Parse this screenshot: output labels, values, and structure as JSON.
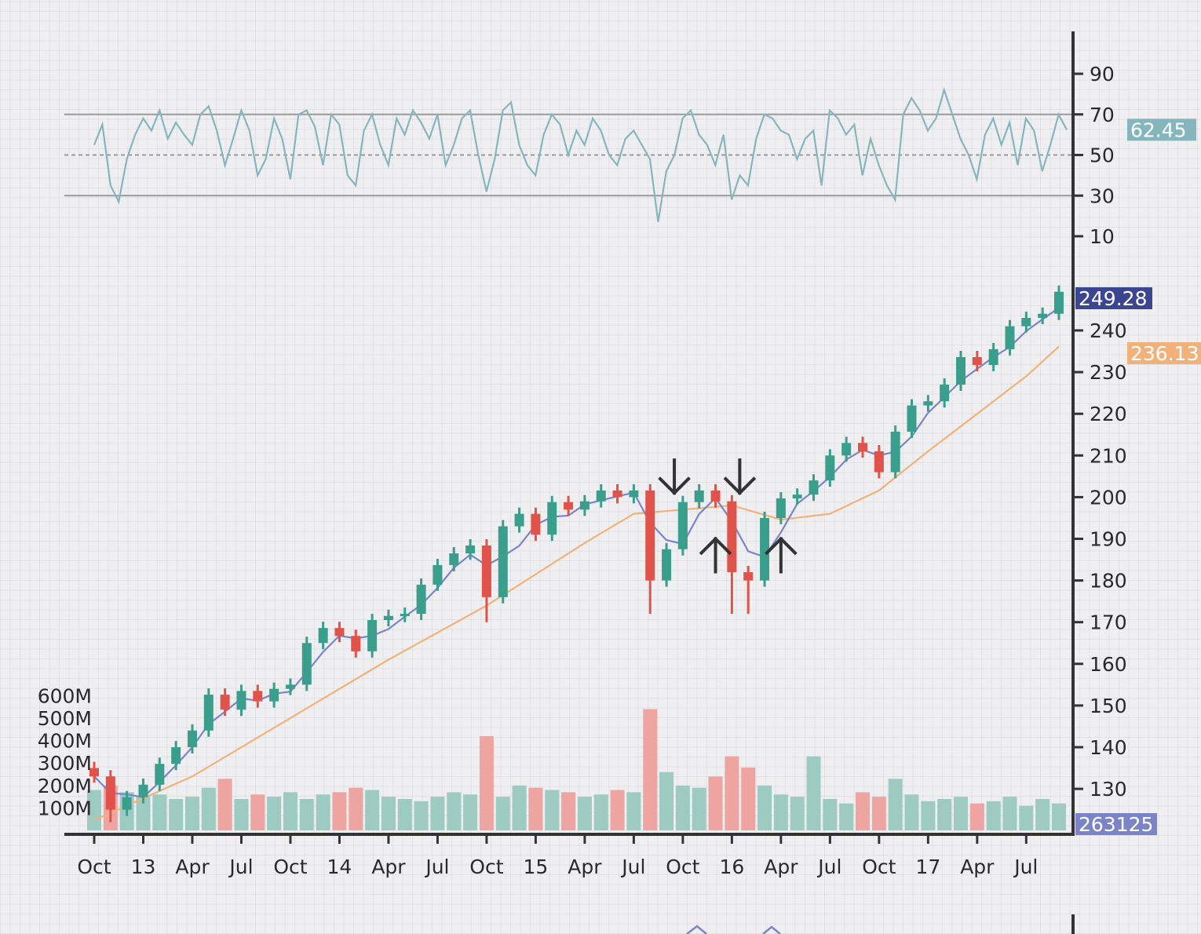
{
  "chart_data": {
    "type": "candlestick",
    "grid": true,
    "dates": [
      "Oct 2012",
      "Nov 2012",
      "Dec 2012",
      "Jan 2013",
      "Feb 2013",
      "Mar 2013",
      "Apr 2013",
      "May 2013",
      "Jun 2013",
      "Jul 2013",
      "Aug 2013",
      "Sep 2013",
      "Oct 2013",
      "Nov 2013",
      "Dec 2013",
      "Jan 2014",
      "Feb 2014",
      "Mar 2014",
      "Apr 2014",
      "May 2014",
      "Jun 2014",
      "Jul 2014",
      "Aug 2014",
      "Sep 2014",
      "Oct 2014",
      "Nov 2014",
      "Dec 2014",
      "Jan 2015",
      "Feb 2015",
      "Mar 2015",
      "Apr 2015",
      "May 2015",
      "Jun 2015",
      "Jul 2015",
      "Aug 2015",
      "Sep 2015",
      "Oct 2015",
      "Nov 2015",
      "Dec 2015",
      "Jan 2016",
      "Feb 2016",
      "Mar 2016",
      "Apr 2016",
      "May 2016",
      "Jun 2016",
      "Jul 2016",
      "Aug 2016",
      "Sep 2016",
      "Oct 2016",
      "Nov 2016",
      "Dec 2016",
      "Jan 2017",
      "Feb 2017",
      "Mar 2017",
      "Apr 2017",
      "May 2017",
      "Jun 2017",
      "Jul 2017",
      "Aug 2017",
      "Sep 2017"
    ],
    "close": [
      133,
      125,
      128,
      131,
      136,
      140,
      144,
      152.6,
      149,
      153.5,
      151,
      154,
      155,
      165,
      168.6,
      166.7,
      163,
      170.5,
      171.5,
      172,
      179,
      183.7,
      186.5,
      188.4,
      176,
      193,
      196,
      191,
      198.8,
      197,
      199,
      201.6,
      200,
      201.6,
      180,
      187.5,
      198.8,
      201.6,
      199,
      182,
      180,
      195,
      199.7,
      200.6,
      204,
      210,
      213,
      211,
      206,
      215.7,
      222,
      223,
      227,
      233.6,
      231.7,
      235.5,
      241,
      243,
      244,
      249.28
    ],
    "wick_lows": {
      "Oct 2014": 170,
      "Aug 2015": 172,
      "Jan 2016": 172,
      "Feb 2016": 172,
      "Nov 2012": 122
    },
    "volume_millions": [
      180,
      200,
      170,
      150,
      160,
      140,
      150,
      190,
      230,
      140,
      160,
      150,
      170,
      140,
      160,
      170,
      190,
      180,
      150,
      140,
      130,
      150,
      170,
      160,
      420,
      150,
      200,
      190,
      180,
      170,
      150,
      160,
      180,
      170,
      540,
      260,
      200,
      190,
      240,
      330,
      280,
      200,
      160,
      150,
      330,
      140,
      120,
      170,
      150,
      230,
      160,
      130,
      140,
      150,
      120,
      130,
      150,
      110,
      140,
      120
    ],
    "long_ma": [
      [
        "Oct 2012",
        122.5
      ],
      [
        "Apr 2013",
        133
      ],
      [
        "Oct 2013",
        147
      ],
      [
        "Apr 2014",
        161
      ],
      [
        "Oct 2014",
        174
      ],
      [
        "Apr 2015",
        189
      ],
      [
        "Jul 2015",
        196
      ],
      [
        "Oct 2015",
        197
      ],
      [
        "Jan 2016",
        198
      ],
      [
        "Apr 2016",
        194.6
      ],
      [
        "Jul 2016",
        196
      ],
      [
        "Oct 2016",
        201.6
      ],
      [
        "Jan 2017",
        211
      ],
      [
        "Apr 2017",
        220
      ],
      [
        "Jul 2017",
        229
      ],
      [
        "Sep 2017",
        236.13
      ]
    ],
    "rsi_semimonthly": [
      55,
      65,
      35,
      27,
      48,
      60,
      68,
      62,
      72,
      58,
      66,
      60,
      55,
      70,
      74,
      62,
      45,
      58,
      72,
      62,
      40,
      48,
      68,
      58,
      38,
      70,
      72,
      64,
      45,
      70,
      65,
      40,
      35,
      62,
      70,
      55,
      45,
      68,
      60,
      72,
      66,
      58,
      70,
      45,
      55,
      68,
      72,
      50,
      32,
      48,
      72,
      76,
      55,
      45,
      40,
      60,
      70,
      65,
      50,
      62,
      55,
      68,
      62,
      50,
      45,
      58,
      62,
      55,
      48,
      17,
      42,
      50,
      68,
      72,
      60,
      55,
      45,
      60,
      28,
      40,
      35,
      58,
      70,
      68,
      62,
      60,
      48,
      58,
      62,
      35,
      72,
      68,
      60,
      65,
      40,
      58,
      45,
      35,
      28,
      70,
      78,
      72,
      62,
      68,
      82,
      70,
      58,
      50,
      38,
      60,
      68,
      55,
      66,
      45,
      68,
      62,
      42,
      55,
      70,
      62.45
    ],
    "rsi_levels": {
      "upper": 70,
      "middle": 50,
      "lower": 30
    },
    "rsi_ticks": [
      "90",
      "70",
      "50",
      "30",
      "10"
    ],
    "price_ticks": [
      "240",
      "230",
      "220",
      "210",
      "200",
      "190",
      "180",
      "170",
      "160",
      "150",
      "140",
      "130"
    ],
    "volume_ticks": [
      "600M",
      "500M",
      "400M",
      "300M",
      "200M",
      "100M"
    ],
    "x_ticks": [
      {
        "date": "Oct 2012",
        "label": "Oct"
      },
      {
        "date": "Jan 2013",
        "label": "13"
      },
      {
        "date": "Apr 2013",
        "label": "Apr"
      },
      {
        "date": "Jul 2013",
        "label": "Jul"
      },
      {
        "date": "Oct 2013",
        "label": "Oct"
      },
      {
        "date": "Jan 2014",
        "label": "14"
      },
      {
        "date": "Apr 2014",
        "label": "Apr"
      },
      {
        "date": "Jul 2014",
        "label": "Jul"
      },
      {
        "date": "Oct 2014",
        "label": "Oct"
      },
      {
        "date": "Jan 2015",
        "label": "15"
      },
      {
        "date": "Apr 2015",
        "label": "Apr"
      },
      {
        "date": "Jul 2015",
        "label": "Jul"
      },
      {
        "date": "Oct 2015",
        "label": "Oct"
      },
      {
        "date": "Jan 2016",
        "label": "16"
      },
      {
        "date": "Apr 2016",
        "label": "Apr"
      },
      {
        "date": "Jul 2016",
        "label": "Jul"
      },
      {
        "date": "Oct 2016",
        "label": "Oct"
      },
      {
        "date": "Jan 2017",
        "label": "17"
      },
      {
        "date": "Apr 2017",
        "label": "Apr"
      },
      {
        "date": "Jul 2017",
        "label": "Jul"
      }
    ],
    "readouts": {
      "rsi": "62.45",
      "price": "249.28",
      "long_ma": "236.13",
      "volume": "263125"
    },
    "annotations": [
      {
        "type": "down-arrow",
        "date": "Sep 2015",
        "price": 201
      },
      {
        "type": "down-arrow",
        "date": "Jan 2016",
        "price": 201
      },
      {
        "type": "up-arrow",
        "date": "Dec 2015",
        "price": 190
      },
      {
        "type": "up-arrow",
        "date": "Apr 2016",
        "price": 190
      }
    ],
    "colors": {
      "up": "#3a9e8c",
      "down": "#e0524a",
      "up_volume": "#9dcbc2",
      "down_volume": "#eea5a2",
      "short_ma": "#7b84c6",
      "long_ma": "#f0b27a",
      "rsi": "#86b6bd",
      "price_label": "#3b4590",
      "axis": "#333333"
    }
  }
}
